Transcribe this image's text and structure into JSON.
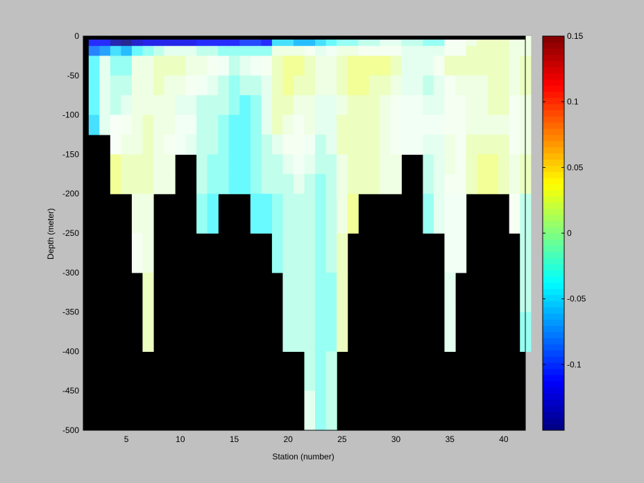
{
  "chart_data": {
    "type": "heatmap",
    "title": "",
    "xlabel": "Station (number)",
    "ylabel": "Depth (meter)",
    "xlim": [
      1,
      42
    ],
    "ylim": [
      -500,
      0
    ],
    "xticks": [
      "5",
      "10",
      "15",
      "20",
      "25",
      "30",
      "35",
      "40"
    ],
    "yticks": [
      "0",
      "-50",
      "-100",
      "-150",
      "-200",
      "-250",
      "-300",
      "-350",
      "-400",
      "-450",
      "-500"
    ],
    "colorbar": {
      "range": [
        -0.15,
        0.15
      ],
      "ticks": [
        "0.15",
        "0.1",
        "0.05",
        "0",
        "-0.05",
        "-0.1"
      ],
      "colormap": "jet",
      "levels": 64
    },
    "mask_color": "#000000",
    "depth_levels": [
      -12.5,
      -25,
      -50,
      -75,
      -100,
      -125,
      -150,
      -175,
      -200,
      -250,
      -300,
      -350,
      -400,
      -450,
      -500
    ],
    "stations": [
      {
        "x": 2,
        "bottom": -125,
        "values": [
          -0.11,
          -0.08,
          -0.04,
          -0.04,
          -0.04,
          -0.05
        ]
      },
      {
        "x": 3,
        "bottom": -125,
        "values": [
          -0.11,
          -0.07,
          -0.01,
          -0.01,
          -0.01,
          -0.01
        ]
      },
      {
        "x": 4,
        "bottom": -200,
        "values": [
          -0.14,
          -0.05,
          -0.03,
          -0.02,
          -0.02,
          0.003,
          0.003,
          0.03,
          0.03
        ]
      },
      {
        "x": 5,
        "bottom": -200,
        "values": [
          -0.15,
          -0.06,
          -0.03,
          -0.02,
          -0.01,
          0.005,
          0.01,
          0.02,
          0.02
        ]
      },
      {
        "x": 6,
        "bottom": -300,
        "values": [
          -0.13,
          -0.04,
          0.01,
          0.01,
          0.01,
          0.01,
          0.01,
          0.02,
          0.02,
          0.01,
          0.005
        ]
      },
      {
        "x": 7,
        "bottom": -400,
        "values": [
          -0.12,
          -0.03,
          0.01,
          0.01,
          0.01,
          0.02,
          0.02,
          0.02,
          0.02,
          0.01,
          0.01,
          0.02,
          0.02
        ]
      },
      {
        "x": 8,
        "bottom": -200,
        "values": [
          -0.12,
          -0.02,
          0.02,
          0.02,
          0.01,
          0.01,
          0.01,
          0.01,
          0.01
        ]
      },
      {
        "x": 9,
        "bottom": -200,
        "values": [
          -0.12,
          -0.01,
          0.02,
          0.01,
          0.01,
          0.01,
          0.005,
          0.01,
          0.01
        ]
      },
      {
        "x": 10,
        "bottom": -150,
        "values": [
          -0.12,
          -0.01,
          0.02,
          0.01,
          -0.01,
          -0.005,
          -0.005
        ]
      },
      {
        "x": 11,
        "bottom": -150,
        "values": [
          -0.12,
          -0.01,
          0.01,
          0.005,
          -0.01,
          -0.005,
          -0.01
        ]
      },
      {
        "x": 12,
        "bottom": -250,
        "values": [
          -0.11,
          -0.02,
          0.01,
          -0.005,
          -0.02,
          -0.02,
          -0.02,
          -0.02,
          -0.02,
          -0.03
        ]
      },
      {
        "x": 13,
        "bottom": -250,
        "values": [
          -0.11,
          -0.02,
          0.005,
          -0.01,
          -0.02,
          -0.02,
          -0.02,
          -0.03,
          -0.03,
          -0.04
        ]
      },
      {
        "x": 14,
        "bottom": -200,
        "values": [
          -0.11,
          -0.03,
          -0.005,
          -0.02,
          -0.02,
          -0.03,
          -0.03,
          -0.03,
          -0.03
        ]
      },
      {
        "x": 15,
        "bottom": -200,
        "values": [
          -0.11,
          -0.03,
          -0.02,
          -0.03,
          -0.03,
          -0.04,
          -0.04,
          -0.04,
          -0.04
        ]
      },
      {
        "x": 16,
        "bottom": -200,
        "values": [
          -0.1,
          -0.03,
          -0.01,
          -0.02,
          -0.04,
          -0.04,
          -0.04,
          -0.04,
          -0.04
        ]
      },
      {
        "x": 17,
        "bottom": -250,
        "values": [
          -0.1,
          -0.03,
          -0.005,
          -0.02,
          -0.03,
          -0.03,
          -0.03,
          -0.03,
          -0.03,
          -0.04
        ]
      },
      {
        "x": 18,
        "bottom": -250,
        "values": [
          -0.11,
          -0.03,
          0.005,
          -0.01,
          -0.01,
          -0.01,
          -0.02,
          -0.02,
          -0.02,
          -0.04
        ]
      },
      {
        "x": 19,
        "bottom": -300,
        "values": [
          -0.05,
          0.01,
          0.02,
          0.02,
          0.02,
          0.02,
          -0.01,
          -0.02,
          -0.02,
          -0.03,
          -0.03,
          -0.04
        ]
      },
      {
        "x": 20,
        "bottom": -400,
        "values": [
          -0.05,
          0.01,
          0.03,
          0.03,
          0.02,
          0.01,
          0.005,
          -0.01,
          -0.02,
          -0.02,
          -0.02,
          -0.02,
          -0.02
        ]
      },
      {
        "x": 21,
        "bottom": -400,
        "values": [
          -0.06,
          0.01,
          0.03,
          0.02,
          0.01,
          0.005,
          0.005,
          -0.005,
          -0.01,
          -0.02,
          -0.02,
          -0.02,
          -0.02
        ]
      },
      {
        "x": 22,
        "bottom": -500,
        "values": [
          -0.06,
          0.005,
          0.02,
          0.02,
          0.01,
          0.01,
          -0.005,
          -0.01,
          -0.02,
          -0.02,
          -0.02,
          -0.02,
          -0.02,
          -0.02,
          -0.01
        ]
      },
      {
        "x": 23,
        "bottom": -500,
        "values": [
          -0.05,
          -0.01,
          0.01,
          0.01,
          -0.01,
          -0.01,
          -0.02,
          -0.02,
          -0.03,
          -0.03,
          -0.03,
          -0.03,
          -0.03,
          -0.03,
          -0.03
        ]
      },
      {
        "x": 24,
        "bottom": -500,
        "values": [
          -0.04,
          -0.005,
          0.01,
          0.01,
          -0.01,
          -0.01,
          -0.01,
          -0.02,
          -0.02,
          -0.02,
          -0.02,
          -0.03,
          -0.03,
          -0.02,
          -0.02
        ]
      },
      {
        "x": 25,
        "bottom": -400,
        "values": [
          -0.03,
          0.01,
          0.02,
          0.02,
          0.01,
          0.02,
          0.02,
          0.01,
          0.01,
          0.01,
          0.02,
          0.02,
          0.02
        ]
      },
      {
        "x": 26,
        "bottom": -250,
        "values": [
          -0.03,
          0.01,
          0.03,
          0.03,
          0.02,
          0.02,
          0.02,
          0.02,
          0.02,
          0.03
        ]
      },
      {
        "x": 27,
        "bottom": -200,
        "values": [
          -0.02,
          0.005,
          0.03,
          0.03,
          0.02,
          0.02,
          0.02,
          0.02,
          0.02
        ]
      },
      {
        "x": 28,
        "bottom": -200,
        "values": [
          -0.02,
          0.005,
          0.03,
          0.02,
          0.02,
          0.02,
          0.02,
          0.02,
          0.02
        ]
      },
      {
        "x": 29,
        "bottom": -200,
        "values": [
          -0.01,
          0.005,
          0.03,
          0.02,
          0.01,
          0.01,
          0.01,
          0.01,
          0.01
        ]
      },
      {
        "x": 30,
        "bottom": -200,
        "values": [
          -0.01,
          0.005,
          0.02,
          0.01,
          0.005,
          0.005,
          0.005,
          0.01,
          0.01
        ]
      },
      {
        "x": 31,
        "bottom": -150,
        "values": [
          -0.02,
          -0.01,
          -0.01,
          -0.01,
          -0.005,
          -0.005,
          -0.005
        ]
      },
      {
        "x": 32,
        "bottom": -150,
        "values": [
          -0.02,
          -0.01,
          -0.01,
          -0.01,
          -0.005,
          -0.005,
          -0.005
        ]
      },
      {
        "x": 33,
        "bottom": -250,
        "values": [
          -0.03,
          -0.01,
          -0.01,
          -0.02,
          -0.01,
          -0.005,
          -0.01,
          -0.02,
          -0.02,
          -0.03
        ]
      },
      {
        "x": 34,
        "bottom": -250,
        "values": [
          -0.03,
          -0.01,
          0.005,
          -0.01,
          -0.01,
          -0.005,
          -0.01,
          -0.01,
          -0.01,
          -0.01
        ]
      },
      {
        "x": 35,
        "bottom": -400,
        "values": [
          0.005,
          0.005,
          0.02,
          0.005,
          0.005,
          0.005,
          0.01,
          0.01,
          0.005,
          -0.005,
          -0.005,
          -0.01,
          -0.01
        ]
      },
      {
        "x": 36,
        "bottom": -300,
        "values": [
          0.005,
          0.005,
          0.02,
          0.01,
          0.005,
          0.005,
          0.005,
          0.005,
          0.005,
          -0.005,
          -0.005
        ]
      },
      {
        "x": 37,
        "bottom": -200,
        "values": [
          0.01,
          0.02,
          0.02,
          0.01,
          0.01,
          0.01,
          0.02,
          0.02,
          0.02
        ]
      },
      {
        "x": 38,
        "bottom": -200,
        "values": [
          0.02,
          0.02,
          0.02,
          0.01,
          0.01,
          0.01,
          0.02,
          0.03,
          0.03
        ]
      },
      {
        "x": 39,
        "bottom": -200,
        "values": [
          0.02,
          0.02,
          0.02,
          0.02,
          0.02,
          0.01,
          0.02,
          0.03,
          0.03
        ]
      },
      {
        "x": 40,
        "bottom": -200,
        "values": [
          0.02,
          0.02,
          0.02,
          0.02,
          0.02,
          0.01,
          0.02,
          0.02,
          0.02
        ]
      },
      {
        "x": 41,
        "bottom": -250,
        "values": [
          0.01,
          0.01,
          0.01,
          0.01,
          0.005,
          0.005,
          0.005,
          0.01,
          0.01,
          0.005
        ]
      },
      {
        "x": 42,
        "bottom": -400,
        "values": [
          0.01,
          0.01,
          0.02,
          0.02,
          0.01,
          0.01,
          0.01,
          0.02,
          0.02,
          -0.02,
          -0.02,
          -0.02,
          -0.03
        ]
      }
    ]
  }
}
